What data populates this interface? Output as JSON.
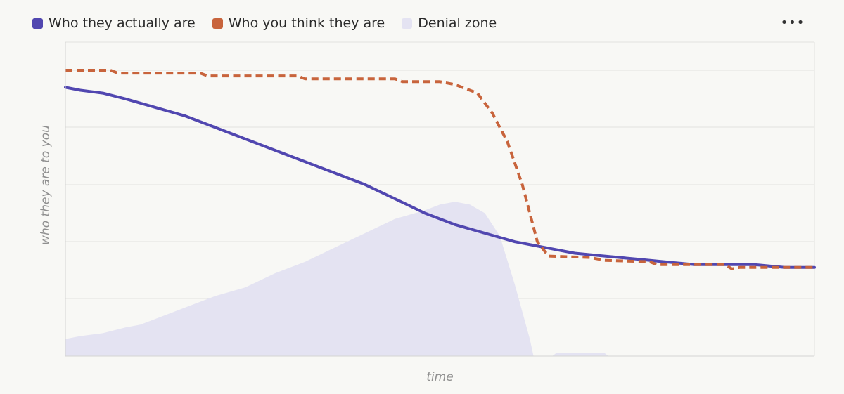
{
  "chart_data": {
    "type": "line",
    "xlabel": "time",
    "ylabel": "who they are to you",
    "xlim": [
      0,
      100
    ],
    "ylim": [
      0,
      100
    ],
    "grid": true,
    "legend_position": "top-left",
    "series": [
      {
        "name": "Who they actually are",
        "kind": "line",
        "style": "solid",
        "color": "#5147b0",
        "points": [
          [
            0,
            94
          ],
          [
            2,
            93
          ],
          [
            5,
            92
          ],
          [
            8,
            90
          ],
          [
            12,
            87
          ],
          [
            16,
            84
          ],
          [
            20,
            80
          ],
          [
            24,
            76
          ],
          [
            28,
            72
          ],
          [
            32,
            68
          ],
          [
            36,
            64
          ],
          [
            40,
            60
          ],
          [
            44,
            55
          ],
          [
            48,
            50
          ],
          [
            52,
            46
          ],
          [
            56,
            43
          ],
          [
            60,
            40
          ],
          [
            64,
            38
          ],
          [
            68,
            36
          ],
          [
            72,
            35
          ],
          [
            76,
            34
          ],
          [
            80,
            33
          ],
          [
            84,
            32
          ],
          [
            88,
            32
          ],
          [
            92,
            32
          ],
          [
            96,
            31
          ],
          [
            100,
            31
          ]
        ]
      },
      {
        "name": "Who you think they are",
        "kind": "line",
        "style": "dashed",
        "color": "#c8643c",
        "points": [
          [
            0,
            100
          ],
          [
            6,
            100
          ],
          [
            7,
            99
          ],
          [
            18,
            99
          ],
          [
            19,
            98
          ],
          [
            31,
            98
          ],
          [
            32,
            97
          ],
          [
            44,
            97
          ],
          [
            45,
            96
          ],
          [
            50,
            96
          ],
          [
            52,
            95
          ],
          [
            55,
            92
          ],
          [
            57,
            85
          ],
          [
            59,
            75
          ],
          [
            61,
            60
          ],
          [
            63,
            40
          ],
          [
            64.5,
            35
          ],
          [
            70,
            34.5
          ],
          [
            72,
            33.5
          ],
          [
            78,
            33
          ],
          [
            79,
            32
          ],
          [
            88,
            32
          ],
          [
            89,
            30.5
          ],
          [
            90,
            31
          ],
          [
            100,
            31
          ]
        ]
      },
      {
        "name": "Denial zone",
        "kind": "area",
        "color": "#e4e3f2",
        "points": [
          [
            0,
            6
          ],
          [
            2,
            7
          ],
          [
            5,
            8
          ],
          [
            8,
            10
          ],
          [
            10,
            11
          ],
          [
            12,
            13
          ],
          [
            16,
            17
          ],
          [
            20,
            21
          ],
          [
            24,
            24
          ],
          [
            28,
            29
          ],
          [
            32,
            33
          ],
          [
            36,
            38
          ],
          [
            40,
            43
          ],
          [
            44,
            48
          ],
          [
            48,
            51
          ],
          [
            50,
            53
          ],
          [
            52,
            54
          ],
          [
            54,
            53
          ],
          [
            56,
            50
          ],
          [
            58,
            42
          ],
          [
            60,
            25
          ],
          [
            62,
            6
          ],
          [
            62.5,
            0
          ],
          [
            65,
            0
          ],
          [
            65.5,
            1
          ],
          [
            72,
            1
          ],
          [
            72.5,
            0
          ],
          [
            100,
            0
          ]
        ]
      }
    ]
  },
  "menu": {
    "label": "•••"
  }
}
